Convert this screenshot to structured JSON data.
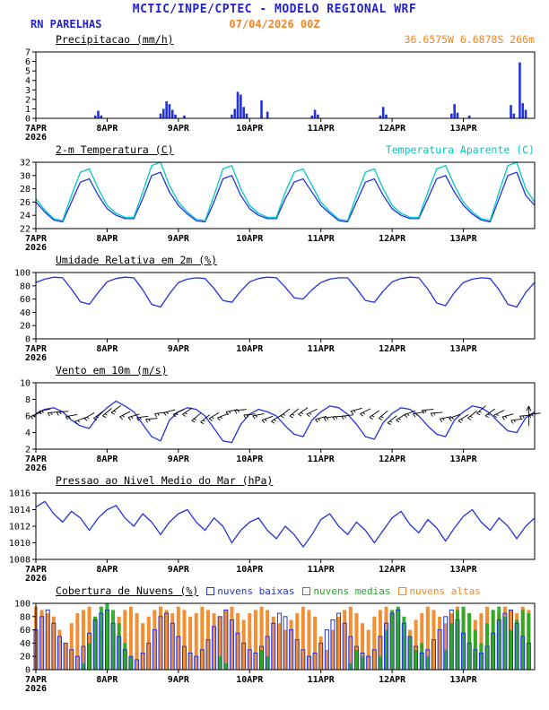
{
  "header": {
    "title": "MCTIC/INPE/CPTEC - MODELO REGIONAL WRF",
    "station": "RN PARELHAS",
    "run": "07/04/2026 00Z",
    "location": "36.6575W 6.6878S 266m"
  },
  "colors": {
    "header_blue": "#2323cc",
    "orange": "#f28522",
    "cyan": "#00c8c8",
    "line_blue": "#2233dd",
    "green": "#22aa22",
    "black": "#000000"
  },
  "x_axis": {
    "hours_total": 168,
    "tick_hours": [
      0,
      24,
      48,
      72,
      96,
      120,
      144
    ],
    "tick_labels": [
      "7APR",
      "8APR",
      "9APR",
      "10APR",
      "11APR",
      "12APR",
      "13APR"
    ],
    "year_label": "2026"
  },
  "chart_data": [
    {
      "id": "precipitation",
      "type": "bar",
      "title": "Precipitacao (mm/h)",
      "right_label": {
        "text": "36.6575W 6.6878S 266m",
        "color": "#f28522"
      },
      "ylim": [
        0,
        7
      ],
      "yticks": [
        0,
        1,
        2,
        3,
        4,
        5,
        6,
        7
      ],
      "series": [
        {
          "name": "precipitacao",
          "color": "#2233dd",
          "points": [
            [
              20,
              0.3
            ],
            [
              21,
              0.8
            ],
            [
              22,
              0.3
            ],
            [
              42,
              0.5
            ],
            [
              43,
              1.0
            ],
            [
              44,
              1.8
            ],
            [
              45,
              1.5
            ],
            [
              46,
              0.9
            ],
            [
              47,
              0.4
            ],
            [
              50,
              0.3
            ],
            [
              66,
              0.4
            ],
            [
              67,
              1.0
            ],
            [
              68,
              2.8
            ],
            [
              69,
              2.5
            ],
            [
              70,
              1.2
            ],
            [
              71,
              0.5
            ],
            [
              76,
              1.9
            ],
            [
              78,
              0.7
            ],
            [
              93,
              0.3
            ],
            [
              94,
              0.9
            ],
            [
              95,
              0.4
            ],
            [
              116,
              0.3
            ],
            [
              117,
              1.2
            ],
            [
              118,
              0.4
            ],
            [
              140,
              0.5
            ],
            [
              141,
              1.5
            ],
            [
              142,
              0.6
            ],
            [
              146,
              0.3
            ],
            [
              160,
              1.4
            ],
            [
              161,
              0.5
            ],
            [
              163,
              5.9
            ],
            [
              164,
              1.6
            ],
            [
              165,
              0.9
            ]
          ]
        }
      ]
    },
    {
      "id": "temperature",
      "type": "line",
      "title": "2-m Temperatura (C)",
      "right_label": {
        "text": "Temperatura Aparente (C)",
        "color": "#00c8c8"
      },
      "ylim": [
        22,
        32
      ],
      "yticks": [
        22,
        24,
        26,
        28,
        30,
        32
      ],
      "step_hours": 3,
      "series": [
        {
          "name": "temperatura-2m",
          "color": "#2233dd",
          "values": [
            26.0,
            24.5,
            23.3,
            23.0,
            26.0,
            29.0,
            29.5,
            27.0,
            25.0,
            24.0,
            23.5,
            23.5,
            26.5,
            30.0,
            30.5,
            27.5,
            25.5,
            24.2,
            23.2,
            23.0,
            26.0,
            29.5,
            30.0,
            27.0,
            25.0,
            24.0,
            23.5,
            23.5,
            26.5,
            29.0,
            29.5,
            27.5,
            25.5,
            24.3,
            23.2,
            23.0,
            26.0,
            29.0,
            29.5,
            27.0,
            25.0,
            24.0,
            23.5,
            23.5,
            26.5,
            29.5,
            30.0,
            27.5,
            25.5,
            24.2,
            23.3,
            23.0,
            26.5,
            30.0,
            30.5,
            27.0,
            25.5
          ]
        },
        {
          "name": "temperatura-aparente",
          "color": "#00c8c8",
          "values": [
            26.5,
            24.8,
            23.5,
            23.2,
            27.0,
            30.5,
            31.0,
            28.0,
            25.5,
            24.3,
            23.7,
            23.7,
            27.5,
            31.5,
            32.0,
            28.5,
            26.0,
            24.5,
            23.4,
            23.2,
            27.0,
            31.0,
            31.5,
            28.0,
            25.5,
            24.3,
            23.7,
            23.7,
            27.5,
            30.5,
            31.0,
            28.5,
            26.0,
            24.6,
            23.4,
            23.2,
            27.0,
            30.5,
            31.0,
            28.0,
            25.5,
            24.3,
            23.7,
            23.7,
            27.5,
            31.0,
            31.5,
            28.5,
            26.0,
            24.5,
            23.5,
            23.2,
            27.5,
            31.5,
            32.0,
            28.0,
            26.0
          ]
        }
      ]
    },
    {
      "id": "humidity",
      "type": "line",
      "title": "Umidade Relativa em 2m (%)",
      "ylim": [
        0,
        100
      ],
      "yticks": [
        0,
        20,
        40,
        60,
        80,
        100
      ],
      "step_hours": 3,
      "series": [
        {
          "name": "umidade-relativa",
          "color": "#2233dd",
          "values": [
            85,
            90,
            93,
            92,
            75,
            56,
            52,
            70,
            86,
            91,
            93,
            92,
            74,
            52,
            48,
            68,
            85,
            90,
            92,
            91,
            76,
            58,
            55,
            72,
            86,
            91,
            93,
            92,
            78,
            62,
            60,
            74,
            85,
            90,
            92,
            92,
            76,
            58,
            55,
            72,
            86,
            91,
            93,
            92,
            75,
            54,
            50,
            70,
            85,
            90,
            92,
            91,
            74,
            52,
            48,
            70,
            85
          ]
        }
      ]
    },
    {
      "id": "wind",
      "type": "line",
      "title": "Vento em 10m (m/s)",
      "ylim": [
        2,
        10
      ],
      "yticks": [
        2,
        4,
        6,
        8,
        10
      ],
      "step_hours": 3,
      "barbs": {
        "color": "#000000",
        "band_value": 6.2
      },
      "series": [
        {
          "name": "vento-10m",
          "color": "#2233dd",
          "values": [
            6.3,
            6.8,
            7.0,
            6.5,
            5.5,
            4.8,
            4.5,
            6.0,
            7.0,
            7.8,
            7.2,
            6.5,
            5.0,
            3.5,
            3.0,
            5.5,
            6.5,
            7.0,
            6.8,
            6.0,
            4.5,
            3.0,
            2.8,
            5.0,
            6.2,
            6.8,
            6.5,
            6.0,
            4.8,
            3.8,
            3.5,
            5.5,
            6.5,
            7.2,
            7.0,
            6.2,
            5.0,
            3.5,
            3.2,
            5.2,
            6.3,
            7.0,
            6.8,
            6.0,
            4.8,
            3.8,
            3.5,
            5.5,
            6.5,
            7.2,
            7.0,
            6.3,
            5.2,
            4.2,
            4.0,
            5.8,
            6.5
          ]
        }
      ]
    },
    {
      "id": "pressure",
      "type": "line",
      "title": "Pressao ao Nivel Medio do Mar (hPa)",
      "ylim": [
        1008,
        1016
      ],
      "yticks": [
        1008,
        1010,
        1012,
        1014,
        1016
      ],
      "step_hours": 3,
      "series": [
        {
          "name": "pressao-nivel-mar",
          "color": "#2233dd",
          "values": [
            1014.3,
            1015.0,
            1013.5,
            1012.5,
            1013.8,
            1013.0,
            1011.5,
            1013.0,
            1014.0,
            1014.5,
            1013.0,
            1012.0,
            1013.5,
            1012.5,
            1011.0,
            1012.5,
            1013.5,
            1014.0,
            1012.5,
            1011.5,
            1013.0,
            1012.0,
            1010.0,
            1011.5,
            1012.5,
            1013.0,
            1011.5,
            1010.5,
            1012.0,
            1011.0,
            1009.5,
            1011.0,
            1012.8,
            1013.5,
            1012.0,
            1011.0,
            1012.5,
            1011.5,
            1010.0,
            1011.5,
            1013.0,
            1013.8,
            1012.2,
            1011.2,
            1012.8,
            1011.8,
            1010.2,
            1011.8,
            1013.2,
            1014.0,
            1012.5,
            1011.5,
            1013.0,
            1012.0,
            1010.5,
            1012.0,
            1013.0
          ]
        }
      ]
    },
    {
      "id": "clouds",
      "type": "bar-multi",
      "title": "Cobertura de Nuvens (%)",
      "ylim": [
        0,
        100
      ],
      "yticks": [
        0,
        20,
        40,
        60,
        80,
        100
      ],
      "step_hours": 2,
      "legend": [
        {
          "label": "nuvens baixas",
          "color": "#2233dd"
        },
        {
          "label": "nuvens medias",
          "color": "#22aa22"
        },
        {
          "label": "nuvens altas",
          "color": "#f28522"
        }
      ],
      "series": [
        {
          "name": "nuvens-baixas",
          "color": "#2233dd",
          "style": "outline",
          "values": [
            60,
            80,
            90,
            70,
            50,
            40,
            30,
            20,
            35,
            55,
            75,
            85,
            90,
            70,
            50,
            30,
            20,
            15,
            25,
            40,
            60,
            80,
            85,
            70,
            50,
            35,
            25,
            20,
            30,
            45,
            65,
            80,
            90,
            75,
            55,
            40,
            30,
            25,
            35,
            50,
            70,
            85,
            80,
            60,
            45,
            30,
            20,
            25,
            40,
            60,
            75,
            85,
            70,
            50,
            35,
            25,
            20,
            30,
            50,
            70,
            85,
            90,
            70,
            50,
            35,
            25,
            30,
            45,
            60,
            80,
            90,
            75,
            55,
            40,
            30,
            25,
            35,
            55,
            75,
            85,
            90,
            70,
            50,
            40
          ]
        },
        {
          "name": "nuvens-medias",
          "color": "#22aa22",
          "style": "fill",
          "values": [
            0,
            0,
            0,
            0,
            0,
            0,
            0,
            0,
            10,
            40,
            80,
            95,
            100,
            90,
            70,
            40,
            20,
            0,
            0,
            0,
            0,
            0,
            0,
            0,
            0,
            0,
            0,
            0,
            0,
            0,
            0,
            20,
            10,
            0,
            0,
            0,
            0,
            0,
            30,
            20,
            0,
            0,
            0,
            0,
            0,
            0,
            0,
            0,
            0,
            0,
            0,
            0,
            0,
            10,
            30,
            20,
            0,
            0,
            20,
            60,
            90,
            95,
            80,
            50,
            30,
            40,
            20,
            0,
            0,
            30,
            70,
            90,
            95,
            85,
            60,
            40,
            70,
            90,
            95,
            80,
            60,
            75,
            90,
            85
          ]
        },
        {
          "name": "nuvens-altas",
          "color": "#f28522",
          "style": "fill",
          "values": [
            95,
            90,
            85,
            80,
            60,
            40,
            70,
            85,
            90,
            95,
            80,
            60,
            40,
            60,
            80,
            90,
            95,
            85,
            70,
            80,
            90,
            95,
            90,
            85,
            95,
            90,
            80,
            85,
            95,
            90,
            85,
            80,
            90,
            95,
            85,
            75,
            85,
            90,
            95,
            90,
            80,
            70,
            60,
            75,
            85,
            95,
            90,
            80,
            50,
            30,
            60,
            80,
            90,
            95,
            85,
            70,
            60,
            80,
            90,
            95,
            85,
            70,
            50,
            60,
            75,
            85,
            95,
            90,
            80,
            70,
            85,
            95,
            90,
            85,
            75,
            85,
            95,
            90,
            85,
            95,
            90,
            85,
            95,
            90
          ]
        }
      ]
    }
  ]
}
